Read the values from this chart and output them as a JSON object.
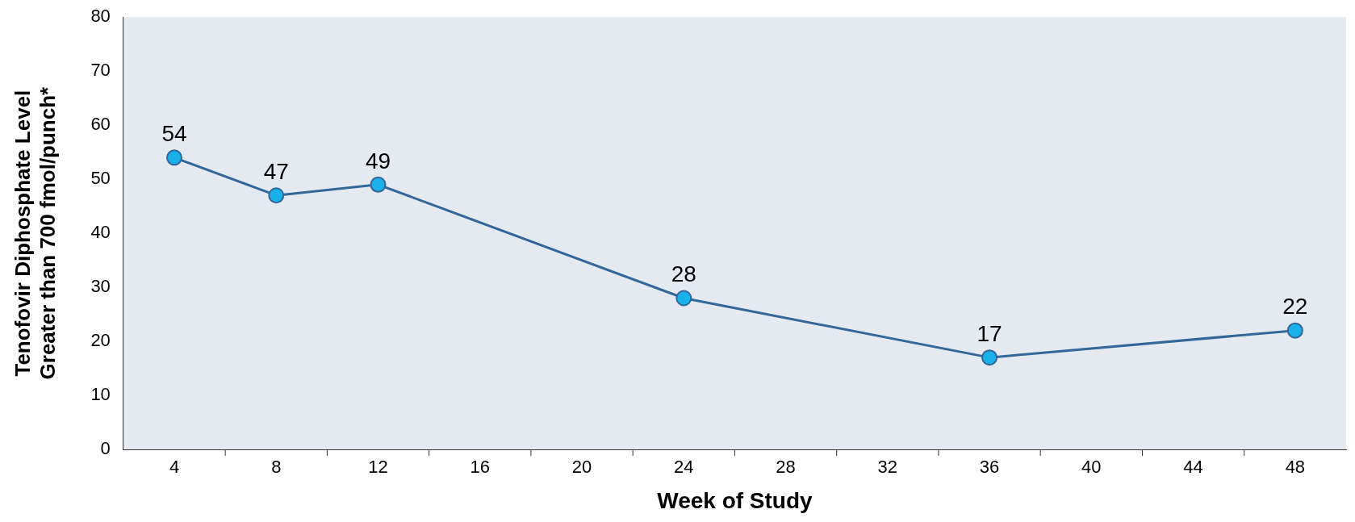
{
  "chart_data": {
    "type": "line",
    "xlabel": "Week of Study",
    "ylabel": "Tenofovir Diphosphate Level\nGreater than 700 fmol/punch*",
    "x": [
      4,
      8,
      12,
      24,
      36,
      48
    ],
    "series": [
      {
        "color": "#336699",
        "values": [
          54,
          47,
          49,
          28,
          17,
          22
        ]
      }
    ],
    "xlim": [
      2,
      50
    ],
    "xticks": [
      4,
      8,
      12,
      16,
      20,
      24,
      28,
      32,
      36,
      40,
      44,
      48
    ],
    "ylim": [
      0,
      80
    ],
    "yticks": [
      0,
      10,
      20,
      30,
      40,
      50,
      60,
      70,
      80
    ],
    "grid": false,
    "legend": false,
    "marker": "circle",
    "line_style": "solid",
    "data_labels": true
  }
}
